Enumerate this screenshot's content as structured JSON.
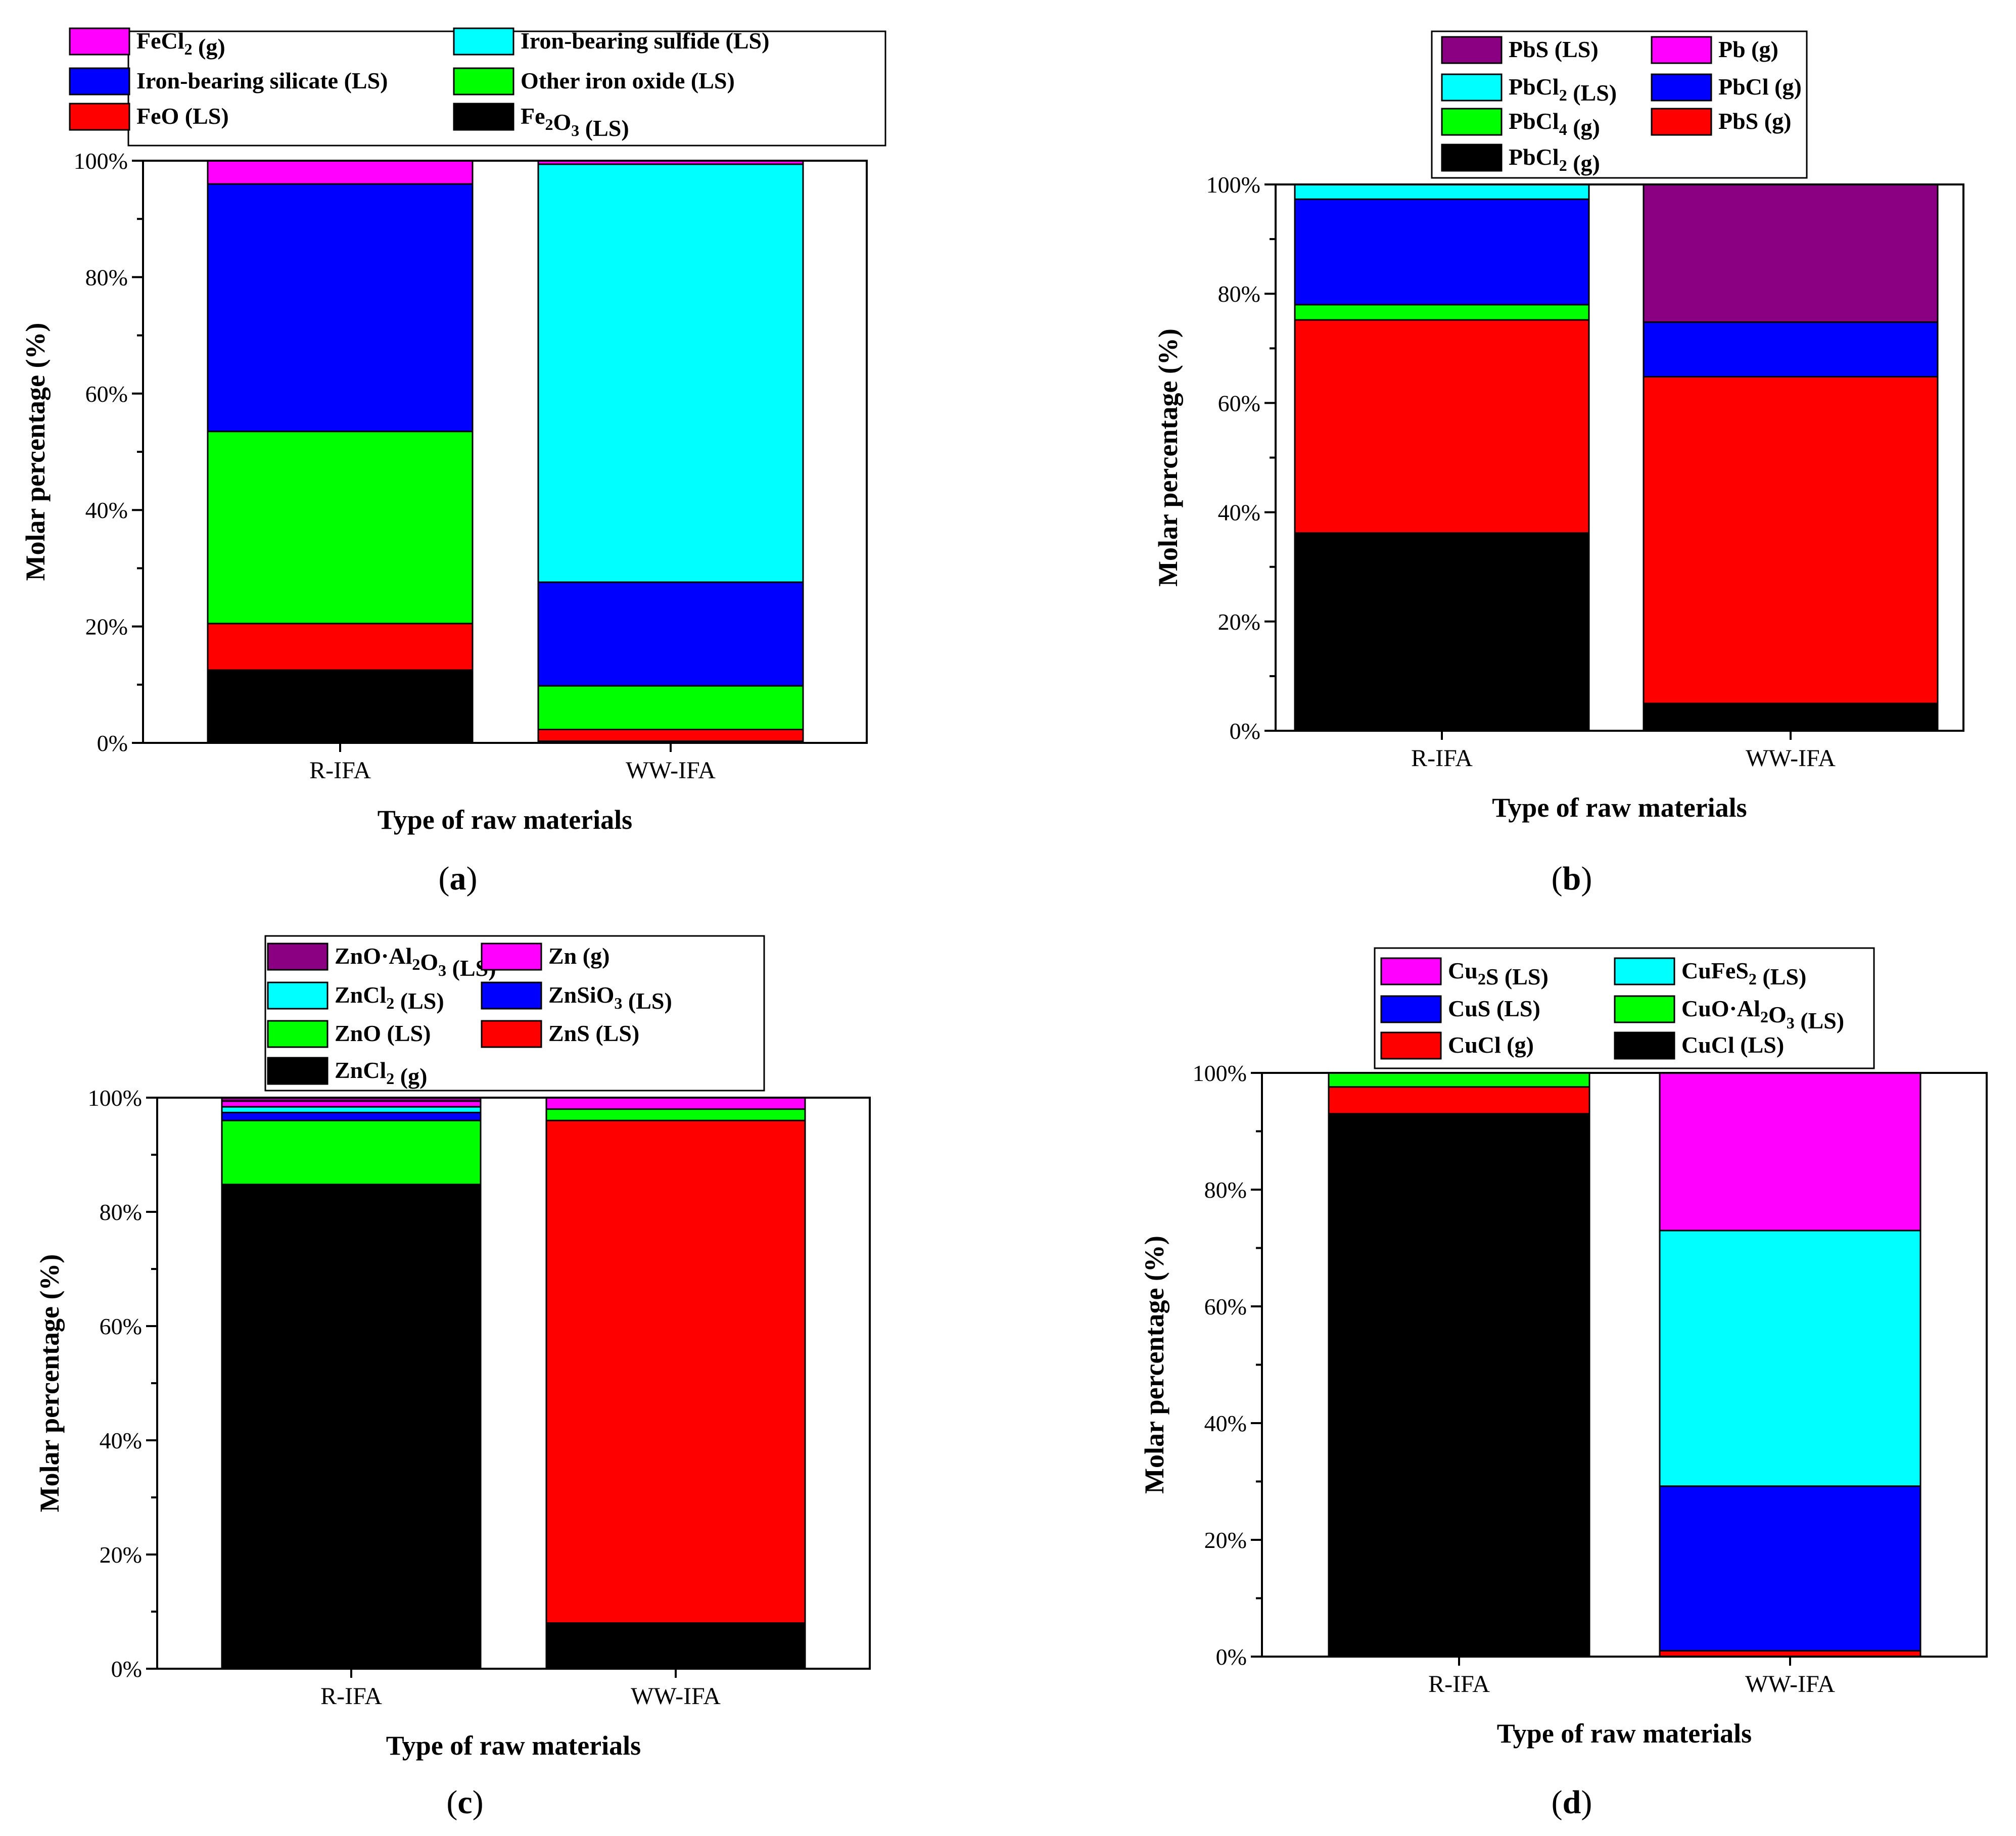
{
  "chart_data": [
    {
      "type": "bar",
      "stacked": true,
      "panel_label": "a",
      "title": "",
      "xlabel": "Type of raw materials",
      "ylabel": "Molar percentage (%)",
      "ylim": [
        0,
        100
      ],
      "y_ticks": [
        "0%",
        "20%",
        "40%",
        "60%",
        "80%",
        "100%"
      ],
      "categories": [
        "R-IFA",
        "WW-IFA"
      ],
      "legend_position": "top",
      "series": [
        {
          "name": "Fe2O3 (LS)",
          "base": "Fe",
          "sub": "2",
          "mid": "O",
          "sub2": "3",
          "rest": " (LS)",
          "color": "#000000",
          "values": [
            12.5,
            0.3
          ]
        },
        {
          "name": "FeO (LS)",
          "base": "FeO (LS)",
          "color": "#ff0000",
          "values": [
            8.0,
            2.0
          ]
        },
        {
          "name": "Other iron oxide (LS)",
          "base": "Other iron oxide (LS)",
          "color": "#00ff00",
          "values": [
            33.0,
            7.5
          ]
        },
        {
          "name": "Iron-bearing silicate (LS)",
          "base": "Iron-bearing silicate (LS)",
          "color": "#0000ff",
          "values": [
            42.5,
            17.8
          ]
        },
        {
          "name": "Iron-bearing sulfide (LS)",
          "base": "Iron-bearing sulfide (LS)",
          "color": "#00ffff",
          "values": [
            0.0,
            71.8
          ]
        },
        {
          "name": "FeCl2 (g)",
          "base": "FeCl",
          "sub": "2",
          "rest": " (g)",
          "color": "#ff00ff",
          "values": [
            4.0,
            0.6
          ]
        }
      ]
    },
    {
      "type": "bar",
      "stacked": true,
      "panel_label": "b",
      "title": "",
      "xlabel": "Type of raw materials",
      "ylabel": "Molar percentage (%)",
      "ylim": [
        0,
        100
      ],
      "y_ticks": [
        "0%",
        "20%",
        "40%",
        "60%",
        "80%",
        "100%"
      ],
      "categories": [
        "R-IFA",
        "WW-IFA"
      ],
      "legend_position": "top",
      "series": [
        {
          "name": "PbCl2 (g)",
          "base": "PbCl",
          "sub": "2",
          "rest": " (g)",
          "color": "#000000",
          "values": [
            36.2,
            5.0
          ]
        },
        {
          "name": "PbS (g)",
          "base": "PbS (g)",
          "color": "#ff0000",
          "values": [
            39.0,
            59.8
          ]
        },
        {
          "name": "PbCl4 (g)",
          "base": "PbCl",
          "sub": "4",
          "rest": " (g)",
          "color": "#00ff00",
          "values": [
            2.8,
            0.0
          ]
        },
        {
          "name": "PbCl (g)",
          "base": "PbCl (g)",
          "color": "#0000ff",
          "values": [
            19.3,
            10.0
          ]
        },
        {
          "name": "PbCl2 (LS)",
          "base": "PbCl",
          "sub": "2",
          "rest": " (LS)",
          "color": "#00ffff",
          "values": [
            2.7,
            0.0
          ]
        },
        {
          "name": "Pb (g)",
          "base": "Pb (g)",
          "color": "#ff00ff",
          "values": [
            0.0,
            0.0
          ]
        },
        {
          "name": "PbS (LS)",
          "base": "PbS (LS)",
          "color": "#8b0082",
          "values": [
            0.0,
            25.2
          ]
        }
      ]
    },
    {
      "type": "bar",
      "stacked": true,
      "panel_label": "c",
      "title": "",
      "xlabel": "Type of raw materials",
      "ylabel": "Molar percentage (%)",
      "ylim": [
        0,
        100
      ],
      "y_ticks": [
        "0%",
        "20%",
        "40%",
        "60%",
        "80%",
        "100%"
      ],
      "categories": [
        "R-IFA",
        "WW-IFA"
      ],
      "legend_position": "top",
      "series": [
        {
          "name": "ZnCl2 (g)",
          "base": "ZnCl",
          "sub": "2",
          "rest": " (g)",
          "color": "#000000",
          "values": [
            84.8,
            8.0
          ]
        },
        {
          "name": "ZnS (LS)",
          "base": "ZnS (LS)",
          "color": "#ff0000",
          "values": [
            0.0,
            88.0
          ]
        },
        {
          "name": "ZnO (LS)",
          "base": "ZnO (LS)",
          "color": "#00ff00",
          "values": [
            11.2,
            2.0
          ]
        },
        {
          "name": "ZnSiO3 (LS)",
          "base": "ZnSiO",
          "sub": "3",
          "rest": " (LS)",
          "color": "#0000ff",
          "values": [
            1.4,
            0.0
          ]
        },
        {
          "name": "ZnCl2 (LS)",
          "base": "ZnCl",
          "sub": "2",
          "rest": " (LS)",
          "color": "#00ffff",
          "values": [
            1.0,
            0.0
          ]
        },
        {
          "name": "Zn (g)",
          "base": "Zn (g)",
          "color": "#ff00ff",
          "values": [
            1.0,
            2.0
          ]
        },
        {
          "name": "ZnO·Al2O3 (LS)",
          "base": "ZnO·Al",
          "sub": "2",
          "mid": "O",
          "sub2": "3",
          "rest": " (LS)",
          "color": "#8b0082",
          "values": [
            0.6,
            0.0
          ]
        }
      ]
    },
    {
      "type": "bar",
      "stacked": true,
      "panel_label": "d",
      "title": "",
      "xlabel": "Type of raw materials",
      "ylabel": "Molar percentage (%)",
      "ylim": [
        0,
        100
      ],
      "y_ticks": [
        "0%",
        "20%",
        "40%",
        "60%",
        "80%",
        "100%"
      ],
      "categories": [
        "R-IFA",
        "WW-IFA"
      ],
      "legend_position": "top",
      "series": [
        {
          "name": "CuCl (LS)",
          "base": "CuCl (LS)",
          "color": "#000000",
          "values": [
            93.0,
            0.0
          ]
        },
        {
          "name": "CuCl (g)",
          "base": "CuCl (g)",
          "color": "#ff0000",
          "values": [
            4.6,
            1.0
          ]
        },
        {
          "name": "CuO·Al2O3 (LS)",
          "base": "CuO·Al",
          "sub": "2",
          "mid": "O",
          "sub2": "3",
          "rest": " (LS)",
          "color": "#00ff00",
          "values": [
            2.4,
            0.0
          ]
        },
        {
          "name": "CuS (LS)",
          "base": "CuS (LS)",
          "color": "#0000ff",
          "values": [
            0.0,
            28.2
          ]
        },
        {
          "name": "CuFeS2 (LS)",
          "base": "CuFeS",
          "sub": "2",
          "rest": " (LS)",
          "color": "#00ffff",
          "values": [
            0.0,
            43.8
          ]
        },
        {
          "name": "Cu2S (LS)",
          "base": "Cu",
          "sub": "2",
          "rest": "S (LS)",
          "color": "#ff00ff",
          "values": [
            0.0,
            27.0
          ]
        }
      ]
    }
  ]
}
